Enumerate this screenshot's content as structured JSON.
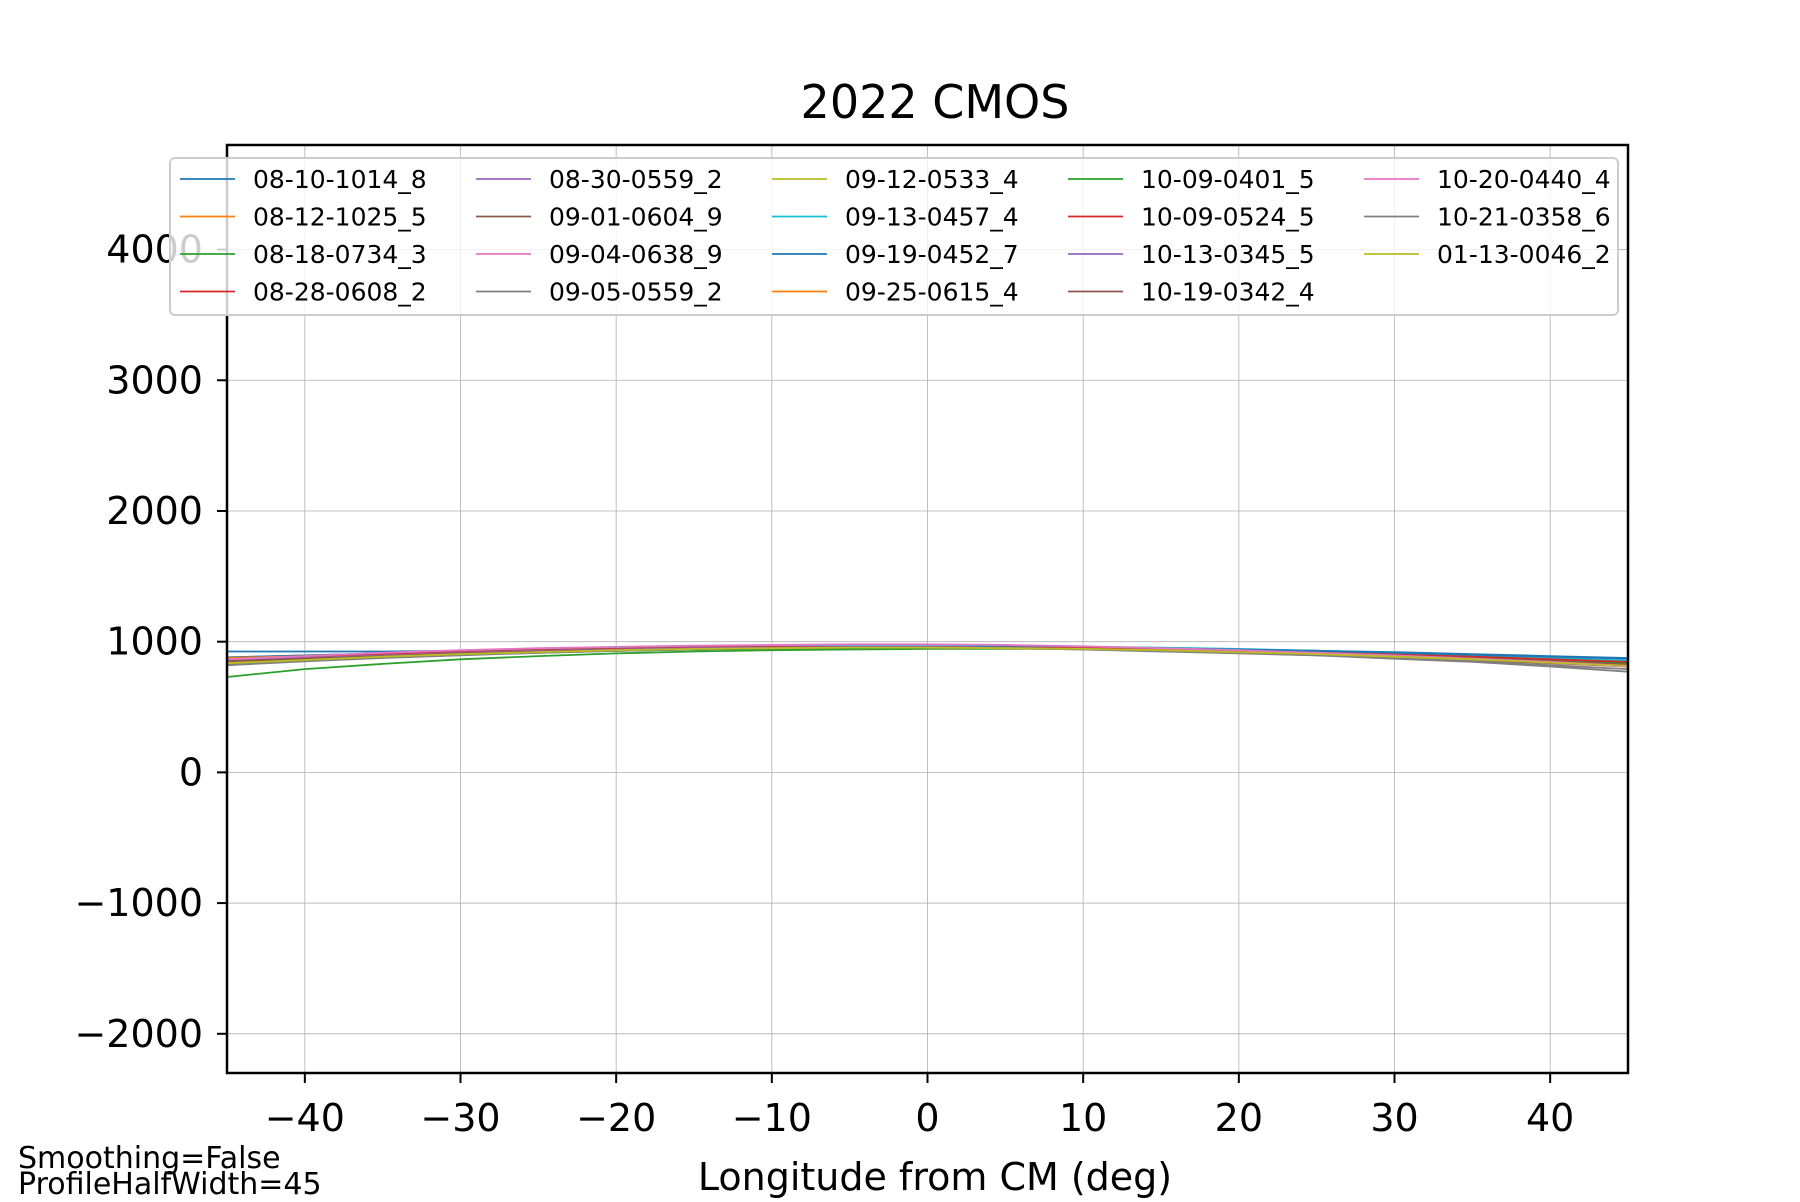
{
  "chart_data": {
    "type": "line",
    "title": "2022 CMOS",
    "xlabel": "Longitude from CM (deg)",
    "ylabel": "",
    "xlim": [
      -45,
      45
    ],
    "ylim": [
      -2300,
      4800
    ],
    "xticks": [
      -40,
      -30,
      -20,
      -10,
      0,
      10,
      20,
      30,
      40
    ],
    "yticks": [
      -2000,
      -1000,
      0,
      1000,
      2000,
      3000,
      4000
    ],
    "xtick_labels": [
      "−40",
      "−30",
      "−20",
      "−10",
      "0",
      "10",
      "20",
      "30",
      "40"
    ],
    "ytick_labels": [
      "−2000",
      "−1000",
      "0",
      "1000",
      "2000",
      "3000",
      "4000"
    ],
    "grid": true,
    "legend_position": "top",
    "legend_columns": 5,
    "x": [
      -45,
      -40,
      -35,
      -30,
      -25,
      -20,
      -15,
      -10,
      -5,
      0,
      5,
      10,
      15,
      20,
      25,
      30,
      35,
      40,
      45
    ],
    "series": [
      {
        "name": "08-10-1014_8",
        "color": "#1f77b4",
        "values": [
          925,
          925,
          925,
          930,
          935,
          940,
          945,
          950,
          955,
          955,
          955,
          950,
          945,
          940,
          930,
          920,
          905,
          890,
          875
        ]
      },
      {
        "name": "08-12-1025_5",
        "color": "#ff7f0e",
        "values": [
          880,
          895,
          910,
          925,
          935,
          945,
          955,
          960,
          965,
          965,
          960,
          955,
          945,
          935,
          920,
          905,
          890,
          870,
          850
        ]
      },
      {
        "name": "08-18-0734_3",
        "color": "#2ca02c",
        "values": [
          730,
          790,
          830,
          865,
          890,
          910,
          925,
          935,
          940,
          945,
          945,
          945,
          940,
          930,
          915,
          895,
          870,
          840,
          810
        ]
      },
      {
        "name": "08-28-0608_2",
        "color": "#d62728",
        "values": [
          860,
          880,
          900,
          915,
          930,
          940,
          950,
          955,
          960,
          960,
          955,
          950,
          945,
          935,
          920,
          905,
          885,
          865,
          845
        ]
      },
      {
        "name": "08-30-0559_2",
        "color": "#9467bd",
        "values": [
          850,
          870,
          890,
          910,
          925,
          940,
          950,
          960,
          965,
          965,
          960,
          950,
          940,
          925,
          910,
          890,
          865,
          840,
          815
        ]
      },
      {
        "name": "09-01-0604_9",
        "color": "#8c564b",
        "values": [
          845,
          865,
          885,
          905,
          920,
          935,
          945,
          955,
          960,
          960,
          955,
          945,
          935,
          920,
          905,
          885,
          860,
          835,
          810
        ]
      },
      {
        "name": "09-04-0638_9",
        "color": "#e377c2",
        "values": [
          860,
          885,
          910,
          930,
          945,
          955,
          965,
          970,
          975,
          975,
          970,
          960,
          950,
          935,
          915,
          895,
          870,
          840,
          810
        ]
      },
      {
        "name": "09-05-0559_2",
        "color": "#7f7f7f",
        "values": [
          830,
          855,
          880,
          900,
          915,
          930,
          940,
          950,
          955,
          955,
          950,
          940,
          930,
          915,
          895,
          875,
          850,
          820,
          790
        ]
      },
      {
        "name": "09-12-0533_4",
        "color": "#bcbd22",
        "values": [
          840,
          865,
          890,
          910,
          925,
          935,
          945,
          950,
          955,
          955,
          950,
          945,
          935,
          920,
          905,
          885,
          865,
          845,
          825
        ]
      },
      {
        "name": "09-13-0457_4",
        "color": "#17becf",
        "values": [
          870,
          890,
          910,
          925,
          940,
          950,
          955,
          960,
          965,
          965,
          965,
          960,
          955,
          945,
          930,
          915,
          895,
          875,
          855
        ]
      },
      {
        "name": "09-19-0452_7",
        "color": "#1f77b4",
        "values": [
          880,
          895,
          910,
          925,
          935,
          945,
          950,
          955,
          960,
          960,
          960,
          955,
          950,
          940,
          930,
          915,
          900,
          885,
          870
        ]
      },
      {
        "name": "09-25-0615_4",
        "color": "#ff7f0e",
        "values": [
          875,
          890,
          905,
          920,
          935,
          945,
          950,
          955,
          960,
          960,
          955,
          950,
          940,
          930,
          915,
          900,
          880,
          860,
          840
        ]
      },
      {
        "name": "10-09-0401_5",
        "color": "#2ca02c",
        "values": [
          850,
          870,
          890,
          905,
          920,
          930,
          940,
          945,
          950,
          950,
          950,
          945,
          940,
          930,
          915,
          900,
          880,
          860,
          835
        ]
      },
      {
        "name": "10-09-0524_5",
        "color": "#d62728",
        "values": [
          865,
          885,
          905,
          920,
          935,
          945,
          955,
          960,
          960,
          960,
          955,
          950,
          940,
          930,
          915,
          900,
          885,
          865,
          845
        ]
      },
      {
        "name": "10-13-0345_5",
        "color": "#9467bd",
        "values": [
          855,
          875,
          895,
          915,
          930,
          940,
          950,
          955,
          960,
          960,
          955,
          945,
          935,
          925,
          910,
          890,
          870,
          845,
          820
        ]
      },
      {
        "name": "10-19-0342_4",
        "color": "#8c564b",
        "values": [
          850,
          870,
          890,
          910,
          925,
          935,
          945,
          950,
          955,
          955,
          950,
          945,
          935,
          925,
          910,
          895,
          875,
          850,
          825
        ]
      },
      {
        "name": "10-20-0440_4",
        "color": "#e377c2",
        "values": [
          865,
          890,
          915,
          935,
          950,
          960,
          970,
          975,
          980,
          980,
          975,
          965,
          950,
          935,
          915,
          895,
          870,
          845,
          815
        ]
      },
      {
        "name": "10-21-0358_6",
        "color": "#7f7f7f",
        "values": [
          820,
          850,
          875,
          895,
          915,
          930,
          940,
          950,
          955,
          955,
          950,
          940,
          925,
          910,
          895,
          870,
          845,
          810,
          770
        ]
      },
      {
        "name": "01-13-0046_2",
        "color": "#bcbd22",
        "values": [
          835,
          860,
          885,
          905,
          920,
          935,
          945,
          950,
          955,
          955,
          950,
          945,
          935,
          920,
          905,
          885,
          865,
          840,
          815
        ]
      }
    ]
  },
  "footer": {
    "smoothing": "Smoothing=False",
    "profile_half_width": "ProfileHalfWidth=45"
  }
}
